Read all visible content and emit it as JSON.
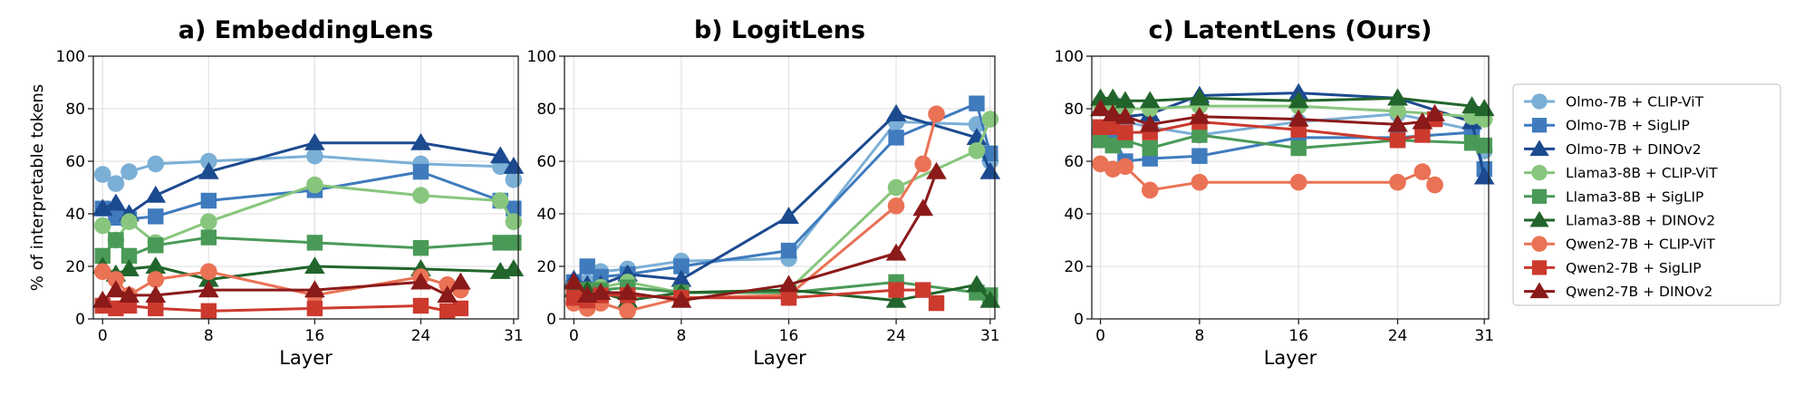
{
  "chart_data": [
    {
      "type": "line",
      "title": "a) EmbeddingLens",
      "xlabel": "Layer",
      "ylabel": "% of interpretable tokens",
      "ylim": [
        0,
        100
      ],
      "xlim": [
        -0.7,
        31.35
      ],
      "xticks": [
        0,
        8,
        16,
        24,
        31
      ],
      "yticks": [
        0,
        20,
        40,
        60,
        80,
        100
      ],
      "grid": true,
      "series": [
        {
          "name": "Olmo-7B + CLIP-ViT",
          "x": [
            0,
            1,
            2,
            4,
            8,
            16,
            24,
            30,
            31
          ],
          "values": [
            55,
            51.5,
            56,
            59,
            60,
            62,
            59,
            58,
            53
          ]
        },
        {
          "name": "Olmo-7B + SigLIP",
          "x": [
            0,
            1,
            2,
            4,
            8,
            16,
            24,
            30,
            31
          ],
          "values": [
            42,
            38.5,
            38,
            39,
            45,
            49,
            56,
            45,
            42
          ]
        },
        {
          "name": "Olmo-7B + DINOv2",
          "x": [
            0,
            1,
            2,
            4,
            8,
            16,
            24,
            30,
            31
          ],
          "values": [
            42,
            44,
            40,
            47,
            56,
            67,
            67,
            62,
            58
          ]
        },
        {
          "name": "Llama3-8B + CLIP-ViT",
          "x": [
            0,
            1,
            2,
            4,
            8,
            16,
            24,
            30,
            31
          ],
          "values": [
            35.5,
            30,
            37,
            29,
            37,
            51,
            47,
            45,
            37
          ]
        },
        {
          "name": "Llama3-8B + SigLIP",
          "x": [
            0,
            1,
            2,
            4,
            8,
            16,
            24,
            30,
            31
          ],
          "values": [
            24,
            30,
            24,
            28,
            31,
            29,
            27,
            29,
            29
          ]
        },
        {
          "name": "Llama3-8B + DINOv2",
          "x": [
            0,
            1,
            2,
            4,
            8,
            16,
            24,
            30,
            31
          ],
          "values": [
            20,
            17,
            19,
            20,
            15,
            20,
            19,
            18,
            19
          ]
        },
        {
          "name": "Qwen2-7B + CLIP-ViT",
          "x": [
            0,
            1,
            2,
            4,
            8,
            16,
            24,
            26,
            27
          ],
          "values": [
            18,
            15,
            9,
            15,
            18,
            9,
            16,
            13,
            11
          ]
        },
        {
          "name": "Qwen2-7B + SigLIP",
          "x": [
            0,
            1,
            2,
            4,
            8,
            16,
            24,
            26,
            27
          ],
          "values": [
            5,
            4,
            5,
            4,
            3,
            4,
            5,
            3,
            4
          ]
        },
        {
          "name": "Qwen2-7B + DINOv2",
          "x": [
            0,
            1,
            2,
            4,
            8,
            16,
            24,
            26,
            27
          ],
          "values": [
            7,
            11,
            9,
            9,
            11,
            11,
            14,
            9,
            14
          ]
        }
      ]
    },
    {
      "type": "line",
      "title": "b) LogitLens",
      "xlabel": "Layer",
      "ylabel": "",
      "ylim": [
        0,
        100
      ],
      "xlim": [
        -0.7,
        31.35
      ],
      "xticks": [
        0,
        8,
        16,
        24,
        31
      ],
      "yticks": [
        0,
        20,
        40,
        60,
        80,
        100
      ],
      "grid": true,
      "series": [
        {
          "name": "Olmo-7B + CLIP-ViT",
          "x": [
            0,
            1,
            2,
            4,
            8,
            16,
            24,
            30,
            31
          ],
          "values": [
            14,
            14,
            18,
            19,
            22,
            23,
            75,
            74,
            60
          ]
        },
        {
          "name": "Olmo-7B + SigLIP",
          "x": [
            0,
            1,
            2,
            4,
            8,
            16,
            24,
            30,
            31
          ],
          "values": [
            14,
            20,
            16,
            17,
            20,
            26,
            69,
            82,
            63
          ]
        },
        {
          "name": "Olmo-7B + DINOv2",
          "x": [
            0,
            1,
            2,
            4,
            8,
            16,
            24,
            30,
            31
          ],
          "values": [
            15,
            13,
            13,
            17,
            15,
            39,
            78,
            69,
            56
          ]
        },
        {
          "name": "Llama3-8B + CLIP-ViT",
          "x": [
            0,
            1,
            2,
            4,
            8,
            16,
            24,
            30,
            31
          ],
          "values": [
            12,
            11,
            12,
            14,
            10,
            11,
            50,
            64,
            76
          ]
        },
        {
          "name": "Llama3-8B + SigLIP",
          "x": [
            0,
            1,
            2,
            4,
            8,
            16,
            24,
            30,
            31
          ],
          "values": [
            10,
            11,
            11,
            12,
            10,
            10,
            14,
            10,
            9
          ]
        },
        {
          "name": "Llama3-8B + DINOv2",
          "x": [
            0,
            1,
            2,
            4,
            8,
            16,
            24,
            30,
            31
          ],
          "values": [
            11,
            11,
            10,
            7,
            10,
            11,
            7,
            13,
            7
          ]
        },
        {
          "name": "Qwen2-7B + CLIP-ViT",
          "x": [
            0,
            1,
            2,
            4,
            8,
            16,
            24,
            26,
            27
          ],
          "values": [
            6,
            4,
            6,
            3,
            8,
            9,
            43,
            59,
            78
          ]
        },
        {
          "name": "Qwen2-7B + SigLIP",
          "x": [
            0,
            1,
            2,
            4,
            8,
            16,
            24,
            26,
            27
          ],
          "values": [
            8,
            7,
            9,
            9,
            8,
            8,
            11,
            11,
            6
          ]
        },
        {
          "name": "Qwen2-7B + DINOv2",
          "x": [
            0,
            1,
            2,
            4,
            8,
            16,
            24,
            26,
            27
          ],
          "values": [
            14,
            9,
            10,
            10,
            7,
            13,
            25,
            42,
            56
          ]
        }
      ]
    },
    {
      "type": "line",
      "title": "c) LatentLens (Ours)",
      "xlabel": "Layer",
      "ylabel": "",
      "ylim": [
        0,
        100
      ],
      "xlim": [
        -0.7,
        31.35
      ],
      "xticks": [
        0,
        8,
        16,
        24,
        31
      ],
      "yticks": [
        0,
        20,
        40,
        60,
        80,
        100
      ],
      "grid": true,
      "series": [
        {
          "name": "Olmo-7B + CLIP-ViT",
          "x": [
            0,
            1,
            2,
            4,
            8,
            16,
            24,
            30,
            31
          ],
          "values": [
            71,
            70,
            75,
            73,
            70,
            75,
            78,
            72,
            64
          ]
        },
        {
          "name": "Olmo-7B + SigLIP",
          "x": [
            0,
            1,
            2,
            4,
            8,
            16,
            24,
            30,
            31
          ],
          "values": [
            72,
            70,
            60,
            61,
            62,
            69,
            69,
            71,
            57
          ]
        },
        {
          "name": "Olmo-7B + DINOv2",
          "x": [
            0,
            1,
            2,
            4,
            8,
            16,
            24,
            30,
            31
          ],
          "values": [
            80,
            78,
            77,
            78,
            85,
            86,
            84,
            75,
            54
          ]
        },
        {
          "name": "Llama3-8B + CLIP-ViT",
          "x": [
            0,
            1,
            2,
            4,
            8,
            16,
            24,
            30,
            31
          ],
          "values": [
            82,
            81,
            80,
            80,
            81,
            81,
            79,
            77,
            76
          ]
        },
        {
          "name": "Llama3-8B + SigLIP",
          "x": [
            0,
            1,
            2,
            4,
            8,
            16,
            24,
            30,
            31
          ],
          "values": [
            68,
            66,
            68,
            65,
            70,
            65,
            68,
            67,
            66
          ]
        },
        {
          "name": "Llama3-8B + DINOv2",
          "x": [
            0,
            1,
            2,
            4,
            8,
            16,
            24,
            30,
            31
          ],
          "values": [
            84,
            84,
            83,
            83,
            84,
            83,
            84,
            81,
            80
          ]
        },
        {
          "name": "Qwen2-7B + CLIP-ViT",
          "x": [
            0,
            1,
            2,
            4,
            8,
            16,
            24,
            26,
            27
          ],
          "values": [
            59,
            57,
            58,
            49,
            52,
            52,
            52,
            56,
            51
          ]
        },
        {
          "name": "Qwen2-7B + SigLIP",
          "x": [
            0,
            1,
            2,
            4,
            8,
            16,
            24,
            26,
            27
          ],
          "values": [
            73,
            73,
            71,
            71,
            75,
            72,
            68,
            70,
            76
          ]
        },
        {
          "name": "Qwen2-7B + DINOv2",
          "x": [
            0,
            1,
            2,
            4,
            8,
            16,
            24,
            26,
            27
          ],
          "values": [
            80,
            78,
            77,
            74,
            77,
            76,
            74,
            75,
            78
          ]
        }
      ]
    }
  ],
  "legend": {
    "placement": "right",
    "entries": [
      {
        "label": "Olmo-7B + CLIP-ViT",
        "color": "#7bafd6",
        "marker": "circle"
      },
      {
        "label": "Olmo-7B + SigLIP",
        "color": "#3f7bbd",
        "marker": "square"
      },
      {
        "label": "Olmo-7B + DINOv2",
        "color": "#1c4a8f",
        "marker": "triangle"
      },
      {
        "label": "Llama3-8B + CLIP-ViT",
        "color": "#88c67d",
        "marker": "circle"
      },
      {
        "label": "Llama3-8B + SigLIP",
        "color": "#4a9a57",
        "marker": "square"
      },
      {
        "label": "Llama3-8B + DINOv2",
        "color": "#22652c",
        "marker": "triangle"
      },
      {
        "label": "Qwen2-7B + CLIP-ViT",
        "color": "#ea7255",
        "marker": "circle"
      },
      {
        "label": "Qwen2-7B + SigLIP",
        "color": "#cc3a2e",
        "marker": "square"
      },
      {
        "label": "Qwen2-7B + DINOv2",
        "color": "#8b1a1a",
        "marker": "triangle"
      }
    ]
  }
}
